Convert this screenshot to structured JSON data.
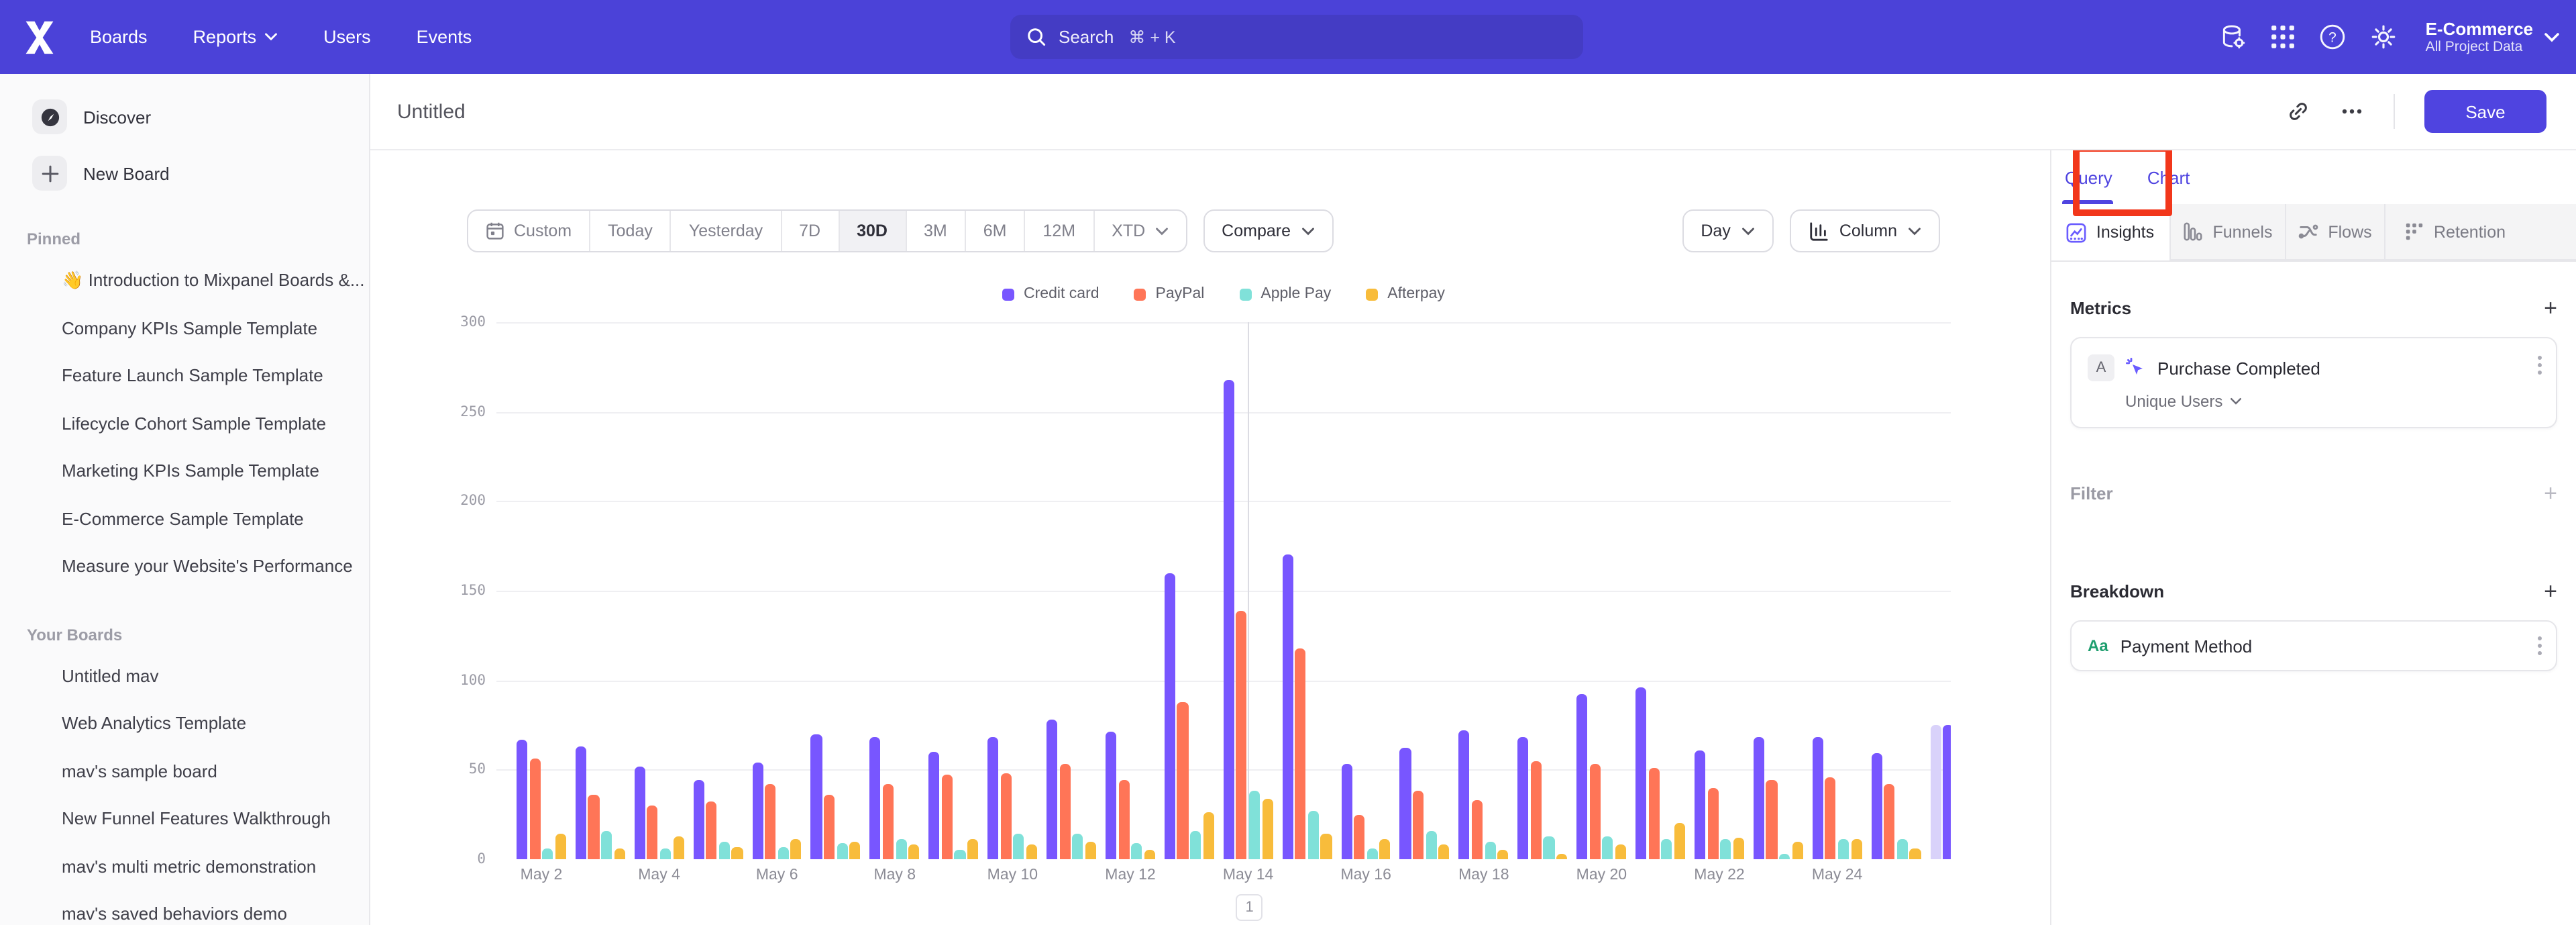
{
  "nav": {
    "items": [
      "Boards",
      "Reports",
      "Users",
      "Events"
    ],
    "search_placeholder": "Search",
    "search_shortcut": "⌘ + K",
    "project_name": "E-Commerce",
    "project_scope": "All Project Data"
  },
  "sidebar": {
    "discover_label": "Discover",
    "new_board_label": "New Board",
    "pinned_label": "Pinned",
    "pinned": [
      "👋 Introduction to Mixpanel Boards &...",
      "Company KPIs Sample Template",
      "Feature Launch Sample Template",
      "Lifecycle Cohort Sample Template",
      "Marketing KPIs Sample Template",
      "E-Commerce Sample Template",
      "Measure your Website's Performance"
    ],
    "your_boards_label": "Your Boards",
    "your_boards": [
      "Untitled mav",
      "Web Analytics Template",
      "mav's sample board",
      "New Funnel Features Walkthrough",
      "mav's multi metric demonstration",
      "mav's saved behaviors demo"
    ]
  },
  "doc": {
    "title": "Untitled",
    "save_label": "Save"
  },
  "toolbar": {
    "date_ranges": [
      "Custom",
      "Today",
      "Yesterday",
      "7D",
      "30D",
      "3M",
      "6M",
      "12M",
      "XTD"
    ],
    "active_range": "30D",
    "compare_label": "Compare",
    "granularity": "Day",
    "chart_type": "Column"
  },
  "panel": {
    "tab_query": "Query",
    "tab_chart": "Chart",
    "report_tabs": [
      "Insights",
      "Funnels",
      "Flows",
      "Retention"
    ],
    "active_report_tab": "Insights",
    "metrics_title": "Metrics",
    "metric": {
      "letter": "A",
      "name": "Purchase Completed",
      "aggregation": "Unique Users"
    },
    "filter_title": "Filter",
    "breakdown_title": "Breakdown",
    "breakdown_item": {
      "icon": "Aa",
      "name": "Payment Method"
    }
  },
  "chart_data": {
    "type": "bar",
    "title": "",
    "xlabel": "",
    "ylabel": "",
    "ylim": [
      0,
      300
    ],
    "yticks": [
      0,
      50,
      100,
      150,
      200,
      250,
      300
    ],
    "grid": true,
    "legend_position": "top",
    "categories": [
      "May 2",
      "May 3",
      "May 4",
      "May 5",
      "May 6",
      "May 7",
      "May 8",
      "May 9",
      "May 10",
      "May 11",
      "May 12",
      "May 13",
      "May 14",
      "May 15",
      "May 16",
      "May 17",
      "May 18",
      "May 19",
      "May 20",
      "May 21",
      "May 22",
      "May 23",
      "May 24",
      "May 25"
    ],
    "x_tick_labels": [
      "May 2",
      "May 4",
      "May 6",
      "May 8",
      "May 10",
      "May 12",
      "May 14",
      "May 16",
      "May 18",
      "May 20",
      "May 22",
      "May 24"
    ],
    "series": [
      {
        "name": "Credit card",
        "color": "#7856FF",
        "values": [
          67,
          63,
          52,
          44,
          54,
          70,
          68,
          60,
          68,
          78,
          71,
          160,
          268,
          170,
          53,
          62,
          72,
          68,
          92,
          96,
          61,
          68,
          68,
          59
        ]
      },
      {
        "name": "PayPal",
        "color": "#FF7557",
        "values": [
          56,
          36,
          30,
          32,
          42,
          36,
          42,
          47,
          48,
          53,
          44,
          88,
          139,
          118,
          25,
          38,
          33,
          55,
          53,
          51,
          40,
          44,
          46,
          42
        ]
      },
      {
        "name": "Apple Pay",
        "color": "#80E1D9",
        "values": [
          6,
          16,
          6,
          10,
          7,
          9,
          11,
          5,
          14,
          14,
          9,
          16,
          38,
          27,
          6,
          16,
          10,
          13,
          13,
          11,
          11,
          3,
          11,
          11
        ]
      },
      {
        "name": "Afterpay",
        "color": "#F8BC3B",
        "values": [
          14,
          6,
          13,
          7,
          11,
          10,
          8,
          11,
          8,
          10,
          5,
          26,
          34,
          14,
          11,
          8,
          5,
          3,
          8,
          20,
          12,
          10,
          11,
          6
        ]
      }
    ],
    "partial_day": {
      "label": "May 26",
      "series": "Credit card",
      "value": 75,
      "color": "#D9D2FA"
    },
    "annotation": {
      "label": "1",
      "at": "May 14"
    }
  }
}
